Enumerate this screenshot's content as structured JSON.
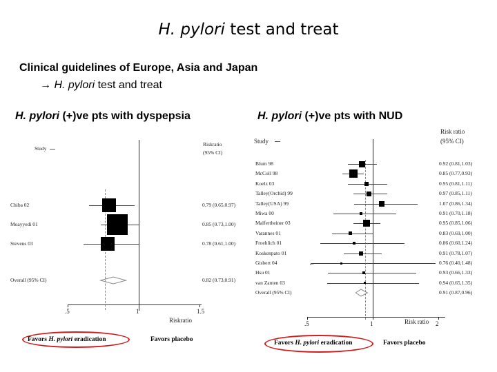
{
  "slide": {
    "title_italic": "H. pylori",
    "title_rest": " test and treat",
    "subtitle_line1": "Clinical guidelines of Europe, Asia and Japan",
    "subtitle_arrow": "→",
    "subtitle_line2_italic": "H. pylori",
    "subtitle_line2_rest": "test and treat"
  },
  "left_panel": {
    "label_italic": "H. pylori",
    "label_rest": " (+)ve pts with dyspepsia",
    "study_header": "Study",
    "rr_header_1": "Riskratio",
    "rr_header_2": "(95% CI)",
    "overall_label": "Overall (95% CI)",
    "overall_ci": "0.82 (0.73,0.91)",
    "axis_xlabel": "Riskratio",
    "favors_left_pre": "Favors",
    "favors_left_italic": "H. pylori",
    "favors_left_post": "eradication",
    "favors_right": "Favors placebo"
  },
  "right_panel": {
    "label_italic": "H. pylori",
    "label_rest": " (+)ve pts with NUD",
    "study_header": "Study",
    "rr_header_1": "Risk ratio",
    "rr_header_2": "(95% CI)",
    "overall_label": "Overall (95% CI)",
    "overall_ci": "0.91 (0.87,0.96)",
    "axis_xlabel": "Risk ratio",
    "favors_left_pre": "Favors",
    "favors_left_italic": "H. pylori",
    "favors_left_post": "eradication",
    "favors_right": "Favors placebo"
  },
  "chart_data": [
    {
      "type": "scatter",
      "title": "",
      "xlabel": "Riskratio",
      "ylabel": "",
      "xlim": [
        0.5,
        1.5
      ],
      "x_ticks": [
        ".5",
        "1",
        "1.5"
      ],
      "reference_line": 1,
      "categories": [
        "Chiba 02",
        "Moayyedi 01",
        "Stevens 03"
      ],
      "series": [
        {
          "values": [
            0.79,
            0.85,
            0.78
          ],
          "ci_low": [
            0.65,
            0.73,
            0.61
          ],
          "ci_high": [
            0.97,
            1.0,
            1.0
          ],
          "ci_labels": [
            "0.79 (0.65,0.97)",
            "0.85 (0.73,1.00)",
            "0.78 (0.61,1.00)"
          ]
        }
      ],
      "overall": {
        "label": "Overall (95% CI)",
        "value": 0.82,
        "ci_low": 0.73,
        "ci_high": 0.91
      }
    },
    {
      "type": "scatter",
      "title": "",
      "xlabel": "Risk ratio",
      "ylabel": "",
      "xlim": [
        0.5,
        2
      ],
      "x_ticks": [
        ".5",
        "1",
        "2"
      ],
      "reference_line": 1,
      "categories": [
        "Blum 98",
        "McColl 98",
        "Koelz 03",
        "Talley(Orchid) 99",
        "Talley(USA) 99",
        "Miwa 00",
        "Malfertheiner 03",
        "Varannes 01",
        "Froehlich 01",
        "Koskenpato 01",
        "Gisbert 04",
        "Hsu 01",
        "van Zanten 03"
      ],
      "series": [
        {
          "values": [
            0.92,
            0.85,
            0.95,
            0.97,
            1.07,
            0.91,
            0.95,
            0.83,
            0.86,
            0.91,
            0.76,
            0.93,
            0.94
          ],
          "ci_low": [
            0.81,
            0.77,
            0.81,
            0.85,
            0.86,
            0.7,
            0.85,
            0.69,
            0.6,
            0.78,
            0.4,
            0.66,
            0.65
          ],
          "ci_high": [
            1.03,
            0.93,
            1.11,
            1.11,
            1.34,
            1.18,
            1.06,
            1.0,
            1.24,
            1.07,
            1.48,
            1.33,
            1.35
          ],
          "ci_labels": [
            "0.92 (0.81,1.03)",
            "0.85 (0.77,0.93)",
            "0.95 (0.81,1.11)",
            "0.97 (0.85,1.11)",
            "1.07 (0.86,1.34)",
            "0.91 (0.70,1.18)",
            "0.95 (0.85,1.06)",
            "0.83 (0.69,1.00)",
            "0.86 (0.60,1.24)",
            "0.91 (0.78,1.07)",
            "0.76 (0.40,1.48)",
            "0.93 (0.66,1.33)",
            "0.94 (0.65,1.35)"
          ]
        }
      ],
      "overall": {
        "label": "Overall (95% CI)",
        "value": 0.91,
        "ci_low": 0.87,
        "ci_high": 0.96
      }
    }
  ]
}
